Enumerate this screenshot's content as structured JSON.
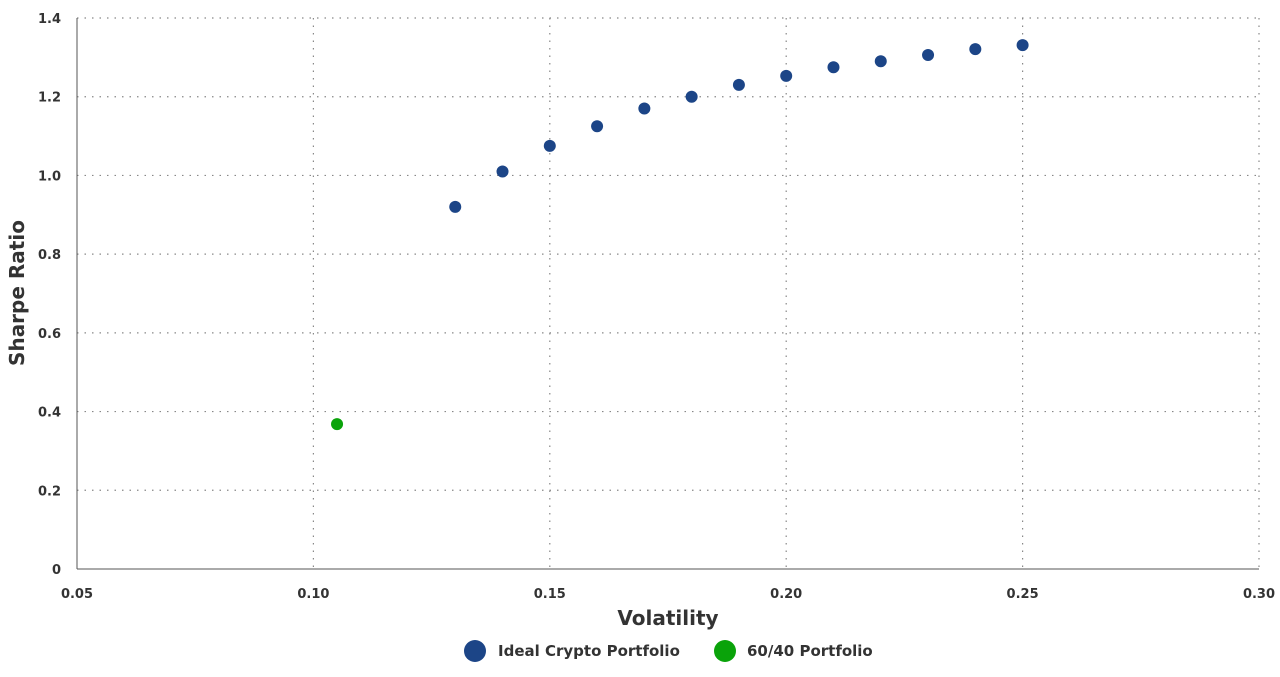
{
  "chart_data": {
    "type": "scatter",
    "title": "",
    "xlabel": "Volatility",
    "ylabel": "Sharpe Ratio",
    "xlim": [
      0.05,
      0.3
    ],
    "ylim": [
      0,
      1.4
    ],
    "grid": true,
    "legend_position": "bottom-center",
    "x_ticks": [
      "0.05",
      "0.10",
      "0.15",
      "0.20",
      "0.25",
      "0.30"
    ],
    "y_ticks": [
      "0",
      "0.2",
      "0.4",
      "0.6",
      "0.8",
      "1.0",
      "1.2",
      "1.4"
    ],
    "series": [
      {
        "name": "Ideal Crypto Portfolio",
        "color": "#1c4587",
        "points": [
          [
            0.13,
            0.92
          ],
          [
            0.14,
            1.01
          ],
          [
            0.15,
            1.075
          ],
          [
            0.16,
            1.125
          ],
          [
            0.17,
            1.17
          ],
          [
            0.18,
            1.2
          ],
          [
            0.19,
            1.23
          ],
          [
            0.2,
            1.253
          ],
          [
            0.21,
            1.275
          ],
          [
            0.22,
            1.29
          ],
          [
            0.23,
            1.306
          ],
          [
            0.24,
            1.321
          ],
          [
            0.25,
            1.331
          ]
        ]
      },
      {
        "name": "60/40 Portfolio",
        "color": "#0aa30a",
        "points": [
          [
            0.105,
            0.368
          ]
        ]
      }
    ]
  }
}
